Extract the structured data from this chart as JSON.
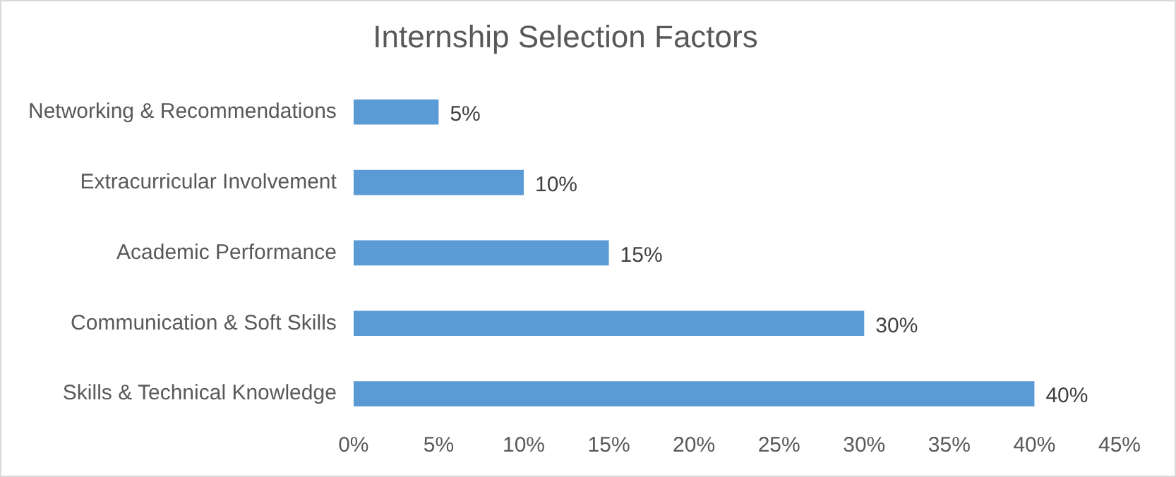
{
  "chart_data": {
    "type": "bar",
    "title": "Internship Selection Factors",
    "orientation": "horizontal",
    "categories": [
      "Networking & Recommendations",
      "Extracurricular Involvement",
      "Academic Performance",
      "Communication & Soft Skills",
      "Skills & Technical Knowledge"
    ],
    "values": [
      5,
      10,
      15,
      30,
      40
    ],
    "color": "#5b9bd5",
    "value_labels": [
      "5%",
      "10%",
      "15%",
      "30%",
      "40%"
    ],
    "xlim": [
      0,
      45
    ],
    "xticks": [
      {
        "value": 0,
        "label": "0%"
      },
      {
        "value": 5,
        "label": "5%"
      },
      {
        "value": 10,
        "label": "10%"
      },
      {
        "value": 15,
        "label": "15%"
      },
      {
        "value": 20,
        "label": "20%"
      },
      {
        "value": 25,
        "label": "25%"
      },
      {
        "value": 30,
        "label": "30%"
      },
      {
        "value": 35,
        "label": "35%"
      },
      {
        "value": 40,
        "label": "40%"
      },
      {
        "value": 45,
        "label": "45%"
      }
    ],
    "grid": false,
    "legend": false
  }
}
